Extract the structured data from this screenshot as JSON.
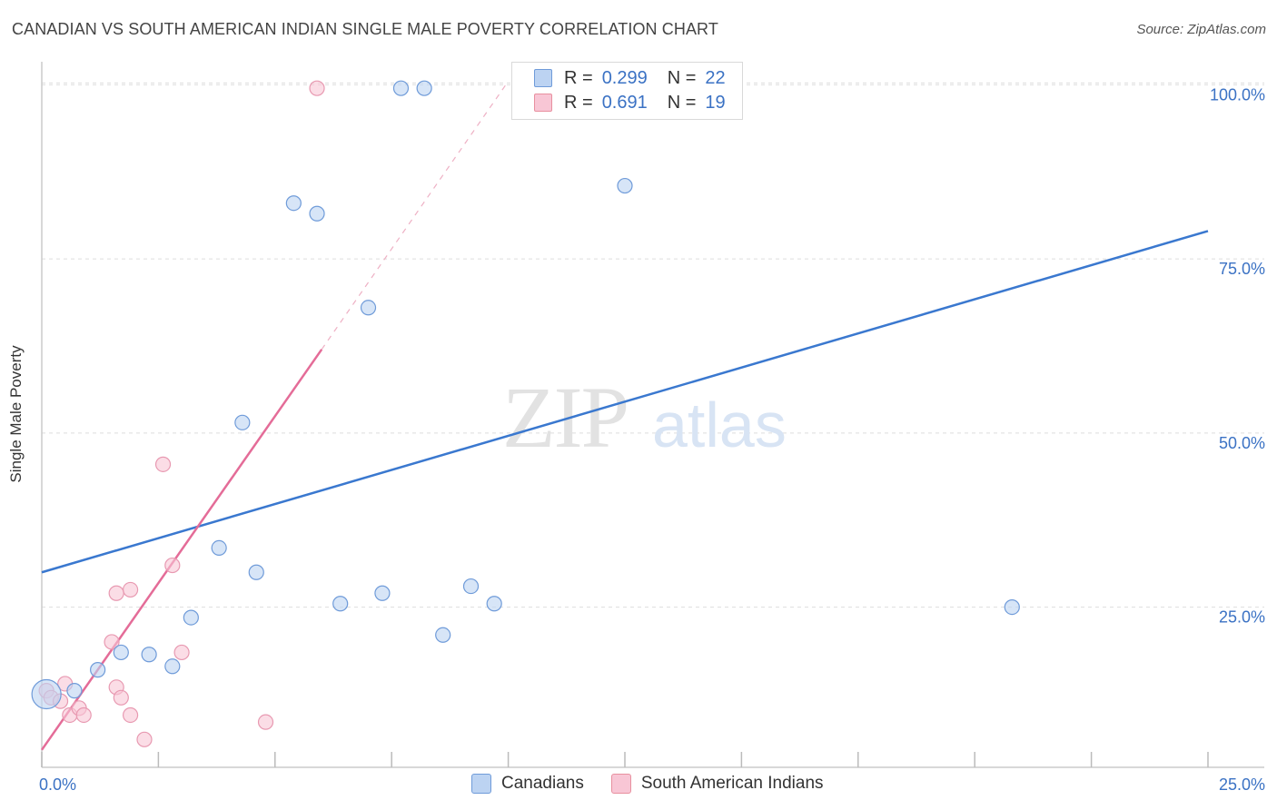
{
  "title": "CANADIAN VS SOUTH AMERICAN INDIAN SINGLE MALE POVERTY CORRELATION CHART",
  "source": "Source: ZipAtlas.com",
  "watermark": {
    "part1": "ZIP",
    "part2": "atlas"
  },
  "colors": {
    "canadians": "#3a78cf",
    "canadians_fill": "#bcd3f2",
    "south_american": "#e46c98",
    "south_american_fill": "#f8c6d5",
    "tick_text": "#3b72c4",
    "grid": "#dddddd"
  },
  "legend": {
    "rows": [
      {
        "r_label": "R =",
        "r_value": "0.299",
        "n_label": "N =",
        "n_value": "22"
      },
      {
        "r_label": "R =",
        "r_value": "0.691",
        "n_label": "N =",
        "n_value": "19"
      }
    ]
  },
  "bottom_legend": [
    "Canadians",
    "South American Indians"
  ],
  "chart_data": {
    "type": "scatter",
    "title": "CANADIAN VS SOUTH AMERICAN INDIAN SINGLE MALE POVERTY CORRELATION CHART",
    "xlabel": "",
    "ylabel": "Single Male Poverty",
    "xlim": [
      0,
      25
    ],
    "ylim": [
      2,
      102
    ],
    "x_tick_labels": [
      "0.0%",
      "25.0%"
    ],
    "y_ticks": [
      25,
      50,
      75,
      100
    ],
    "y_tick_labels": [
      "25.0%",
      "50.0%",
      "75.0%",
      "100.0%"
    ],
    "grid": true,
    "legend_position": "top-center",
    "series": [
      {
        "name": "Canadians",
        "r": 0.299,
        "n": 22,
        "points": [
          [
            0.1,
            12.5
          ],
          [
            0.7,
            13.0
          ],
          [
            1.2,
            16.0
          ],
          [
            1.7,
            18.5
          ],
          [
            2.3,
            18.2
          ],
          [
            2.8,
            16.5
          ],
          [
            3.2,
            23.5
          ],
          [
            3.8,
            33.5
          ],
          [
            4.3,
            51.5
          ],
          [
            4.6,
            30.0
          ],
          [
            5.4,
            83.0
          ],
          [
            5.9,
            81.5
          ],
          [
            6.4,
            25.5
          ],
          [
            7.0,
            68.0
          ],
          [
            7.3,
            27.0
          ],
          [
            7.7,
            99.5
          ],
          [
            8.2,
            99.5
          ],
          [
            8.6,
            21.0
          ],
          [
            9.2,
            28.0
          ],
          [
            9.7,
            25.5
          ],
          [
            12.5,
            85.5
          ],
          [
            20.8,
            25.0
          ]
        ],
        "trend": {
          "x": [
            0,
            25
          ],
          "y": [
            30.0,
            79.0
          ]
        }
      },
      {
        "name": "South American Indians",
        "r": 0.691,
        "n": 19,
        "points": [
          [
            0.1,
            13.0
          ],
          [
            0.2,
            12.0
          ],
          [
            0.4,
            11.5
          ],
          [
            0.5,
            14.0
          ],
          [
            0.6,
            9.5
          ],
          [
            0.8,
            10.5
          ],
          [
            0.9,
            9.5
          ],
          [
            1.5,
            20.0
          ],
          [
            1.6,
            27.0
          ],
          [
            1.6,
            13.5
          ],
          [
            1.7,
            12.0
          ],
          [
            1.9,
            27.5
          ],
          [
            1.9,
            9.5
          ],
          [
            2.2,
            6.0
          ],
          [
            2.6,
            45.5
          ],
          [
            2.8,
            31.0
          ],
          [
            3.0,
            18.5
          ],
          [
            4.8,
            8.5
          ],
          [
            5.9,
            99.5
          ]
        ],
        "trend": {
          "x": [
            0,
            6.0
          ],
          "y": [
            4.5,
            62.0
          ]
        },
        "trend_dashed": {
          "x": [
            6.0,
            10.0
          ],
          "y": [
            62.0,
            100.5
          ]
        }
      }
    ]
  }
}
